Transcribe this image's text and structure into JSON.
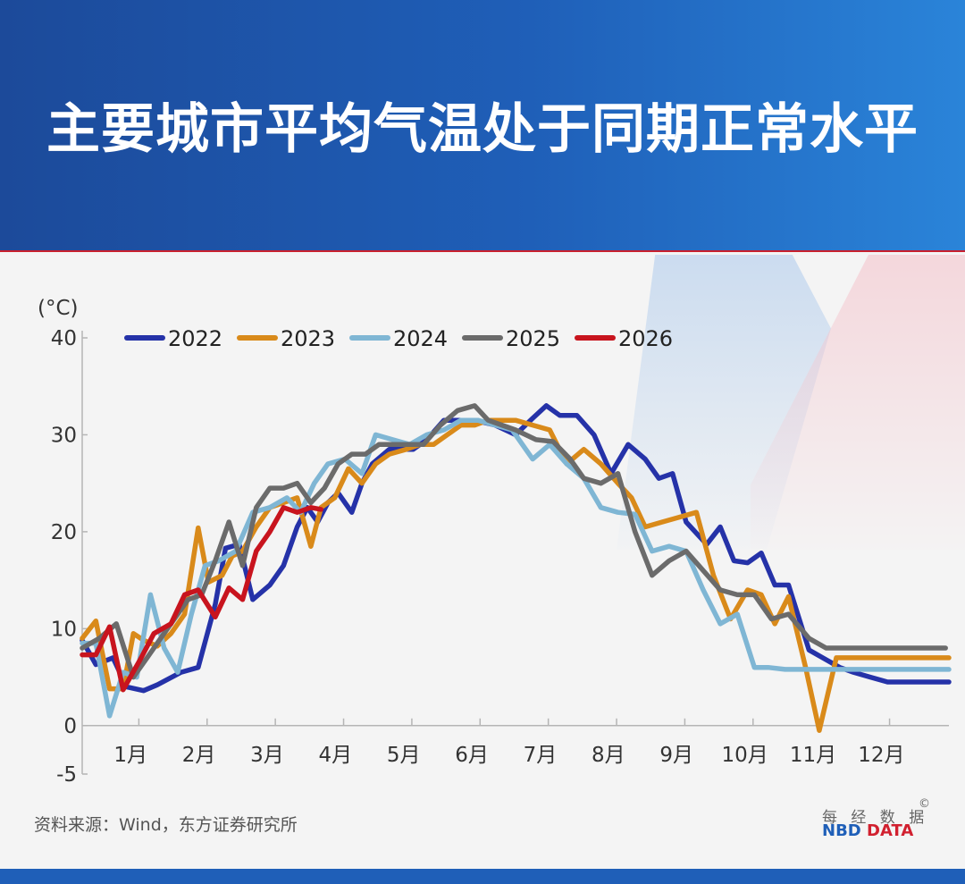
{
  "title": "主要城市平均气温处于同期正常水平",
  "source": "资料来源：Wind，东方证券研究所",
  "brand": {
    "cn": "每 经 数 据",
    "copyright": "©",
    "en_a": "NBD",
    "en_b": " DATA"
  },
  "colors": {
    "2022": "#2532a8",
    "2023": "#d98a1a",
    "2024": "#7fb6d4",
    "2025": "#6b6b6b",
    "2026": "#c8141e"
  },
  "chart_data": {
    "type": "line",
    "unit_label": "(°C)",
    "ylim": [
      -5,
      40
    ],
    "yticks": [
      40,
      30,
      20,
      10,
      0,
      -5
    ],
    "xlim": [
      0.25,
      12.95
    ],
    "xtick_labels": [
      "1月",
      "2月",
      "3月",
      "4月",
      "5月",
      "6月",
      "7月",
      "8月",
      "9月",
      "10月",
      "11月",
      "12月"
    ],
    "xtick_positions": [
      1,
      2,
      3,
      4,
      5,
      6,
      7,
      8,
      9,
      10,
      11,
      12
    ],
    "legend_position": "top-left",
    "series": [
      {
        "name": "2022",
        "x": [
          0.25,
          0.45,
          0.7,
          0.9,
          1.15,
          1.35,
          1.7,
          1.95,
          2.2,
          2.35,
          2.55,
          2.75,
          3.0,
          3.2,
          3.4,
          3.55,
          3.7,
          3.85,
          4.0,
          4.2,
          4.35,
          4.5,
          4.75,
          4.95,
          5.1,
          5.3,
          5.55,
          5.75,
          6.0,
          6.3,
          6.6,
          6.85,
          7.05,
          7.25,
          7.5,
          7.75,
          8.0,
          8.25,
          8.5,
          8.7,
          8.9,
          9.1,
          9.4,
          9.6,
          9.8,
          10.0,
          10.2,
          10.4,
          10.6,
          10.9,
          11.1,
          11.35,
          11.55,
          11.8,
          12.05,
          12.3,
          12.55,
          12.75,
          12.95
        ],
        "values": [
          8.8,
          6.3,
          7.0,
          4.0,
          3.6,
          4.2,
          5.5,
          6.0,
          12.5,
          18.3,
          18.7,
          13.0,
          14.5,
          16.5,
          20.5,
          22.5,
          21.0,
          23.0,
          24.0,
          22.0,
          25.0,
          27.0,
          28.5,
          28.5,
          28.5,
          29.5,
          31.5,
          31.5,
          31.5,
          31.0,
          30.0,
          31.7,
          33.0,
          32.0,
          32.0,
          30.0,
          26.0,
          29.0,
          27.5,
          25.5,
          26.0,
          21.0,
          18.7,
          20.5,
          17.0,
          16.8,
          17.8,
          14.5,
          14.5,
          7.8,
          7.0,
          6.0,
          5.5,
          5.0,
          4.5,
          4.5,
          4.5,
          4.5,
          4.5
        ]
      },
      {
        "name": "2023",
        "x": [
          0.25,
          0.45,
          0.65,
          0.85,
          1.0,
          1.15,
          1.35,
          1.55,
          1.75,
          1.95,
          2.1,
          2.3,
          2.45,
          2.6,
          2.8,
          3.0,
          3.2,
          3.4,
          3.6,
          3.75,
          3.95,
          4.15,
          4.35,
          4.55,
          4.75,
          5.0,
          5.2,
          5.4,
          5.6,
          5.8,
          6.0,
          6.2,
          6.4,
          6.6,
          6.85,
          7.1,
          7.35,
          7.6,
          7.85,
          8.1,
          8.3,
          8.5,
          8.75,
          9.0,
          9.25,
          9.5,
          9.75,
          10.0,
          10.2,
          10.4,
          10.6,
          10.85,
          11.05,
          11.3,
          11.5,
          11.75,
          12.0,
          12.2,
          12.45,
          12.6,
          12.8,
          12.95
        ],
        "values": [
          9.0,
          10.8,
          3.8,
          3.8,
          9.5,
          8.8,
          8.2,
          9.5,
          11.5,
          20.4,
          14.8,
          15.5,
          17.5,
          18.0,
          20.5,
          22.5,
          23.0,
          23.5,
          18.5,
          22.5,
          23.5,
          26.5,
          25.0,
          27.0,
          28.0,
          28.5,
          29.0,
          29.0,
          30.0,
          31.0,
          31.0,
          31.5,
          31.5,
          31.5,
          31.0,
          30.5,
          27.0,
          28.5,
          27.0,
          25.0,
          23.5,
          20.5,
          21.0,
          21.5,
          22.0,
          15.5,
          11.0,
          14.0,
          13.5,
          10.5,
          13.3,
          6.0,
          -0.5,
          7.0,
          7.0,
          7.0,
          7.0,
          7.0,
          7.0,
          7.0,
          7.0,
          7.0
        ]
      },
      {
        "name": "2024",
        "x": [
          0.25,
          0.45,
          0.65,
          0.85,
          1.05,
          1.25,
          1.45,
          1.65,
          1.85,
          2.05,
          2.25,
          2.5,
          2.75,
          3.0,
          3.25,
          3.45,
          3.65,
          3.85,
          4.1,
          4.35,
          4.55,
          4.8,
          5.05,
          5.3,
          5.55,
          5.8,
          6.05,
          6.3,
          6.55,
          6.85,
          7.1,
          7.35,
          7.6,
          7.85,
          8.1,
          8.35,
          8.6,
          8.85,
          9.1,
          9.35,
          9.6,
          9.85,
          10.1,
          10.3,
          10.55,
          10.8,
          11.05,
          11.3,
          11.55,
          11.8,
          12.05,
          12.3,
          12.55,
          12.75,
          12.95
        ],
        "values": [
          8.5,
          8.5,
          1.0,
          5.5,
          5.0,
          13.5,
          8.0,
          5.5,
          11.5,
          16.5,
          17.0,
          18.0,
          22.0,
          22.5,
          23.5,
          22.0,
          25.0,
          27.0,
          27.5,
          26.0,
          30.0,
          29.5,
          29.0,
          30.0,
          30.5,
          31.5,
          31.5,
          31.0,
          30.5,
          27.5,
          29.0,
          27.0,
          25.5,
          22.5,
          22.0,
          21.8,
          18.0,
          18.5,
          18.0,
          14.0,
          10.5,
          11.5,
          6.0,
          6.0,
          5.8,
          5.8,
          5.8,
          5.8,
          5.8,
          5.8,
          5.8,
          5.8,
          5.8,
          5.8,
          5.8
        ]
      },
      {
        "name": "2025",
        "x": [
          0.25,
          0.5,
          0.75,
          1.0,
          1.2,
          1.4,
          1.6,
          1.8,
          2.0,
          2.2,
          2.4,
          2.6,
          2.8,
          3.0,
          3.2,
          3.4,
          3.6,
          3.8,
          4.0,
          4.2,
          4.4,
          4.6,
          4.8,
          5.0,
          5.25,
          5.5,
          5.75,
          6.0,
          6.2,
          6.4,
          6.6,
          6.9,
          7.15,
          7.4,
          7.6,
          7.85,
          8.1,
          8.35,
          8.6,
          8.85,
          9.1,
          9.35,
          9.6,
          9.85,
          10.1,
          10.35,
          10.6,
          10.9,
          11.15,
          11.4,
          11.65,
          11.9,
          12.15,
          12.4,
          12.65,
          12.9
        ],
        "values": [
          8.0,
          9.0,
          10.5,
          5.0,
          7.0,
          9.0,
          11.0,
          13.0,
          13.5,
          17.0,
          21.0,
          16.5,
          22.5,
          24.5,
          24.5,
          25.0,
          23.0,
          24.5,
          27.0,
          28.0,
          28.0,
          29.0,
          29.0,
          29.0,
          29.0,
          31.0,
          32.5,
          33.0,
          31.5,
          31.0,
          30.5,
          29.5,
          29.3,
          27.5,
          25.5,
          25.0,
          26.0,
          20.0,
          15.5,
          17.0,
          18.0,
          16.0,
          14.0,
          13.5,
          13.5,
          11.0,
          11.5,
          9.0,
          8.0,
          8.0,
          8.0,
          8.0,
          8.0,
          8.0,
          8.0,
          8.0
        ]
      },
      {
        "name": "2026",
        "x": [
          0.25,
          0.45,
          0.65,
          0.85,
          1.1,
          1.3,
          1.55,
          1.75,
          1.95,
          2.2,
          2.4,
          2.6,
          2.8,
          3.0,
          3.2,
          3.4,
          3.6,
          3.75
        ],
        "values": [
          7.3,
          7.3,
          10.2,
          3.7,
          6.8,
          9.5,
          10.5,
          13.5,
          14.0,
          11.2,
          14.2,
          13.0,
          18.0,
          20.0,
          22.5,
          22.0,
          22.5,
          22.3
        ]
      }
    ]
  }
}
